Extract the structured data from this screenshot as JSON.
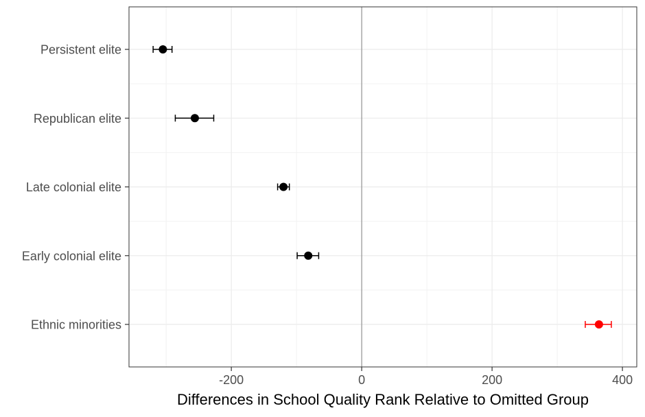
{
  "chart_data": {
    "type": "scatter",
    "subtype": "coefficient-plot-with-error-bars",
    "title": "",
    "xlabel": "Differences in School Quality Rank Relative to Omitted Group",
    "ylabel": "",
    "xlim": [
      -357,
      422
    ],
    "x_ticks": [
      -200,
      0,
      200,
      400
    ],
    "x_tick_labels": [
      "-200",
      "0",
      "200",
      "400"
    ],
    "reference_line_x": 0,
    "grid": true,
    "legend": "none",
    "categories": [
      "Persistent elite",
      "Republican elite",
      "Late colonial elite",
      "Early colonial elite",
      "Ethnic minorities"
    ],
    "points": [
      {
        "label": "Persistent elite",
        "estimate": -305,
        "lower": -320,
        "upper": -291,
        "color": "#000000"
      },
      {
        "label": "Republican elite",
        "estimate": -256,
        "lower": -286,
        "upper": -227,
        "color": "#000000"
      },
      {
        "label": "Late colonial elite",
        "estimate": -120,
        "lower": -129,
        "upper": -111,
        "color": "#000000"
      },
      {
        "label": "Early colonial elite",
        "estimate": -82,
        "lower": -99,
        "upper": -66,
        "color": "#000000"
      },
      {
        "label": "Ethnic minorities",
        "estimate": 364,
        "lower": 343,
        "upper": 383,
        "color": "#ff0000"
      }
    ]
  }
}
